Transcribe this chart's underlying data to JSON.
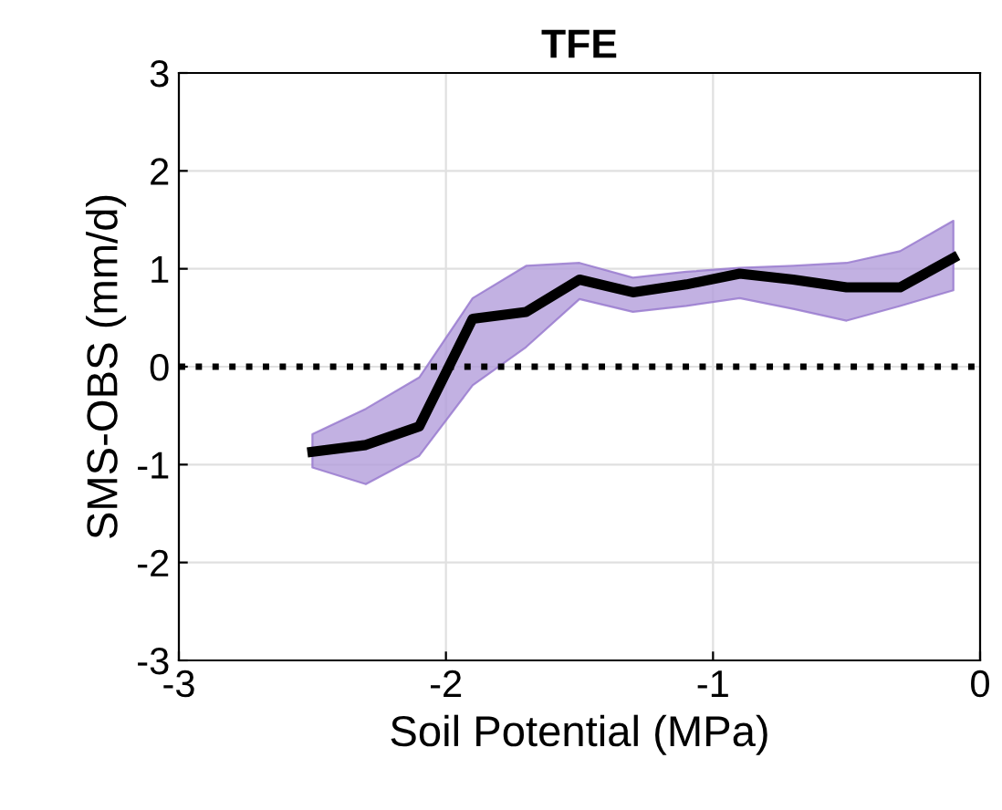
{
  "chart_data": {
    "type": "line",
    "title": "TFE",
    "xlabel": "Soil Potential (MPa)",
    "ylabel": "SMS-OBS (mm/d)",
    "x": [
      -2.5,
      -2.3,
      -2.1,
      -1.9,
      -1.7,
      -1.5,
      -1.3,
      -1.1,
      -0.9,
      -0.7,
      -0.5,
      -0.3,
      -0.1
    ],
    "series": [
      {
        "color": "#000000",
        "values": [
          -0.87,
          -0.8,
          -0.61,
          0.49,
          0.56,
          0.89,
          0.76,
          0.84,
          0.95,
          0.89,
          0.81,
          0.81,
          1.11
        ],
        "lower": [
          -1.03,
          -1.2,
          -0.91,
          -0.19,
          0.2,
          0.69,
          0.56,
          0.62,
          0.7,
          0.59,
          0.47,
          0.62,
          0.78
        ],
        "upper": [
          -0.69,
          -0.43,
          -0.11,
          0.7,
          1.03,
          1.06,
          0.91,
          0.97,
          1.01,
          1.03,
          1.06,
          1.18,
          1.49
        ]
      }
    ],
    "xlim": [
      -3,
      0
    ],
    "xticks": [
      -3,
      -2,
      -1,
      0
    ],
    "ylim": [
      -3,
      3
    ],
    "yticks": [
      -3,
      -2,
      -1,
      0,
      1,
      2,
      3
    ],
    "grid": true,
    "line_style": "solid",
    "ref_lines": [
      {
        "axis": "y",
        "value": 0,
        "color": "#000000",
        "line_style": "dotted"
      }
    ]
  }
}
